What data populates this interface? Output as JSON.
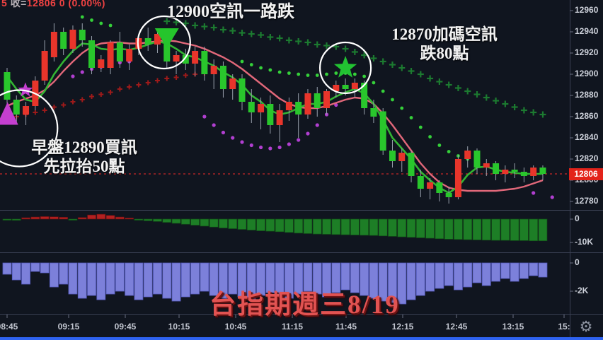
{
  "legend": {
    "p1": "5 ",
    "p2": "收=",
    "p3": "12806  0 (0.00%)"
  },
  "annotations": {
    "signal_top": "12900空訊一路跌",
    "signal_right_line1": "12870加碼空訊",
    "signal_right_line2": "跌80點",
    "signal_left_line1": "早盤12890買訊",
    "signal_left_line2": "先拉抬50點",
    "title": "台指期週三8/19"
  },
  "icons": {
    "gear": "⚙"
  },
  "price_axis": {
    "labels": [
      "12960",
      "12940",
      "12920",
      "12900",
      "12880",
      "12860",
      "12840",
      "12820",
      "12800",
      "12780"
    ],
    "last_price": "12806",
    "badge_color": "#e3231a"
  },
  "time_axis": {
    "labels": [
      "08:45",
      "09:15",
      "09:45",
      "10:15",
      "10:45",
      "11:15",
      "11:45",
      "12:15",
      "12:45",
      "13:15",
      "15:"
    ]
  },
  "colors": {
    "up_candle": "#e8352b",
    "down_candle": "#29c62c",
    "wick": "#98a0ac",
    "ma_fast": "#33b533",
    "ma_slow": "#e2687a",
    "last_price_line": "#c62828",
    "hist_pos": "#b32020",
    "hist_neg": "#1d7e26",
    "sub2_bar": "#7c80da",
    "green_plus": "#1c7a30",
    "green_dot": "#35d03a",
    "red_plus": "#9e1a1a",
    "purple_dot": "#b13fd0",
    "circle": "#ffffff"
  },
  "chart_data": {
    "type": "candlestick",
    "title": "台指期週三8/19",
    "time_start": "08:45",
    "interval_min": 5,
    "price_ticks": [
      12960,
      12940,
      12920,
      12900,
      12880,
      12860,
      12840,
      12820,
      12800,
      12780
    ],
    "last_price": 12806,
    "change": "0 (0.00%)",
    "candles": [
      [
        12902,
        12906,
        12868,
        12876
      ],
      [
        12876,
        12880,
        12854,
        12862
      ],
      [
        12862,
        12874,
        12852,
        12870
      ],
      [
        12870,
        12898,
        12866,
        12894
      ],
      [
        12894,
        12932,
        12890,
        12922
      ],
      [
        12916,
        12948,
        12912,
        12940
      ],
      [
        12940,
        12944,
        12918,
        12924
      ],
      [
        12924,
        12946,
        12920,
        12942
      ],
      [
        12942,
        12948,
        12926,
        12932
      ],
      [
        12932,
        12936,
        12900,
        12906
      ],
      [
        12906,
        12918,
        12902,
        12914
      ],
      [
        12906,
        12932,
        12900,
        12930
      ],
      [
        12930,
        12940,
        12906,
        12912
      ],
      [
        12912,
        12928,
        12904,
        12924
      ],
      [
        12924,
        12938,
        12918,
        12934
      ],
      [
        12934,
        12944,
        12922,
        12928
      ],
      [
        12928,
        12942,
        12920,
        12938
      ],
      [
        12938,
        12942,
        12906,
        12912
      ],
      [
        12912,
        12922,
        12900,
        12918
      ],
      [
        12918,
        12924,
        12904,
        12910
      ],
      [
        12910,
        12926,
        12898,
        12922
      ],
      [
        12922,
        12926,
        12894,
        12900
      ],
      [
        12900,
        12914,
        12886,
        12908
      ],
      [
        12908,
        12912,
        12878,
        12886
      ],
      [
        12886,
        12900,
        12876,
        12896
      ],
      [
        12896,
        12900,
        12866,
        12874
      ],
      [
        12874,
        12886,
        12854,
        12864
      ],
      [
        12864,
        12878,
        12848,
        12872
      ],
      [
        12872,
        12880,
        12844,
        12852
      ],
      [
        12852,
        12872,
        12836,
        12866
      ],
      [
        12866,
        12878,
        12856,
        12874
      ],
      [
        12874,
        12882,
        12840,
        12862
      ],
      [
        12862,
        12886,
        12858,
        12882
      ],
      [
        12882,
        12888,
        12860,
        12868
      ],
      [
        12868,
        12886,
        12862,
        12884
      ],
      [
        12884,
        12894,
        12878,
        12890
      ],
      [
        12890,
        12896,
        12880,
        12886
      ],
      [
        12886,
        12896,
        12878,
        12892
      ],
      [
        12892,
        12894,
        12862,
        12868
      ],
      [
        12868,
        12876,
        12854,
        12860
      ],
      [
        12865,
        12868,
        12824,
        12828
      ],
      [
        12828,
        12838,
        12812,
        12818
      ],
      [
        12818,
        12830,
        12808,
        12826
      ],
      [
        12826,
        12828,
        12798,
        12804
      ],
      [
        12804,
        12810,
        12784,
        12792
      ],
      [
        12792,
        12802,
        12782,
        12798
      ],
      [
        12798,
        12800,
        12780,
        12788
      ],
      [
        12788,
        12794,
        12778,
        12784
      ],
      [
        12784,
        12824,
        12782,
        12820
      ],
      [
        12820,
        12832,
        12812,
        12828
      ],
      [
        12828,
        12830,
        12806,
        12812
      ],
      [
        12812,
        12820,
        12804,
        12816
      ],
      [
        12816,
        12818,
        12800,
        12806
      ],
      [
        12806,
        12814,
        12798,
        12810
      ],
      [
        12810,
        12816,
        12802,
        12808
      ],
      [
        12808,
        12812,
        12798,
        12804
      ],
      [
        12804,
        12814,
        12800,
        12812
      ],
      [
        12812,
        12814,
        12800,
        12806
      ]
    ],
    "ma_fast": [
      12898,
      12886,
      12876,
      12874,
      12884,
      12900,
      12912,
      12922,
      12929,
      12928,
      12924,
      12923,
      12924,
      12923,
      12925,
      12928,
      12931,
      12929,
      12924,
      12918,
      12916,
      12912,
      12908,
      12902,
      12897,
      12890,
      12880,
      12874,
      12866,
      12862,
      12864,
      12868,
      12872,
      12872,
      12874,
      12879,
      12883,
      12886,
      12882,
      12872,
      12857,
      12840,
      12830,
      12820,
      12808,
      12800,
      12793,
      12788,
      12794,
      12805,
      12812,
      12813,
      12810,
      12808,
      12807,
      12806,
      12806,
      12806
    ],
    "ma_slow": [
      12870,
      12874,
      12877,
      12880,
      12885,
      12893,
      12903,
      12912,
      12920,
      12926,
      12929,
      12930,
      12930,
      12929,
      12929,
      12930,
      12931,
      12932,
      12931,
      12929,
      12927,
      12924,
      12920,
      12916,
      12911,
      12905,
      12898,
      12891,
      12884,
      12877,
      12872,
      12869,
      12868,
      12868,
      12870,
      12873,
      12876,
      12878,
      12877,
      12872,
      12863,
      12852,
      12840,
      12828,
      12816,
      12806,
      12798,
      12793,
      12791,
      12790,
      12790,
      12790,
      12790,
      12791,
      12792,
      12794,
      12797,
      12800
    ],
    "overlays": {
      "red_plus_trail": [
        [
          0,
          12858
        ],
        [
          1,
          12860
        ],
        [
          2,
          12862
        ],
        [
          3,
          12864
        ],
        [
          4,
          12866
        ],
        [
          5,
          12869
        ],
        [
          6,
          12871
        ],
        [
          7,
          12874
        ],
        [
          8,
          12876
        ],
        [
          9,
          12879
        ],
        [
          10,
          12881
        ],
        [
          11,
          12883
        ],
        [
          12,
          12886
        ],
        [
          13,
          12888
        ],
        [
          14,
          12890
        ],
        [
          15,
          12892
        ],
        [
          16,
          12894
        ],
        [
          17,
          12896
        ],
        [
          18,
          12897
        ],
        [
          19,
          12899
        ],
        [
          20,
          12900
        ],
        [
          21,
          12901
        ]
      ],
      "purple_dot_trail": [
        [
          7,
          12898
        ],
        [
          8,
          12902
        ],
        [
          9,
          12905
        ],
        [
          10,
          12907
        ],
        [
          11,
          12909
        ],
        [
          12,
          12911
        ],
        [
          13,
          12912
        ],
        [
          21,
          12860
        ],
        [
          22,
          12852
        ],
        [
          23,
          12845
        ],
        [
          24,
          12840
        ],
        [
          25,
          12836
        ],
        [
          26,
          12833
        ],
        [
          27,
          12831
        ],
        [
          28,
          12830
        ],
        [
          29,
          12831
        ],
        [
          30,
          12834
        ],
        [
          31,
          12838
        ],
        [
          32,
          12844
        ],
        [
          33,
          12852
        ],
        [
          34,
          12862
        ],
        [
          35,
          12871
        ],
        [
          56,
          12788
        ],
        [
          58,
          12784
        ]
      ],
      "green_plus_trail": [
        [
          17,
          12950
        ],
        [
          18,
          12949
        ],
        [
          19,
          12948
        ],
        [
          20,
          12946
        ],
        [
          21,
          12945
        ],
        [
          22,
          12944
        ],
        [
          23,
          12942
        ],
        [
          24,
          12941
        ],
        [
          25,
          12939
        ],
        [
          26,
          12938
        ],
        [
          27,
          12937
        ],
        [
          28,
          12935
        ],
        [
          29,
          12934
        ],
        [
          30,
          12932
        ],
        [
          31,
          12931
        ],
        [
          32,
          12930
        ],
        [
          33,
          12928
        ],
        [
          34,
          12927
        ],
        [
          35,
          12926
        ],
        [
          36,
          12924
        ],
        [
          37,
          12921
        ],
        [
          38,
          12918
        ],
        [
          39,
          12915
        ],
        [
          40,
          12912
        ],
        [
          41,
          12909
        ],
        [
          42,
          12906
        ],
        [
          43,
          12903
        ],
        [
          44,
          12900
        ],
        [
          45,
          12896
        ],
        [
          46,
          12893
        ],
        [
          47,
          12890
        ],
        [
          48,
          12887
        ],
        [
          49,
          12884
        ],
        [
          50,
          12881
        ],
        [
          51,
          12878
        ],
        [
          52,
          12875
        ],
        [
          53,
          12872
        ],
        [
          54,
          12869
        ],
        [
          55,
          12866
        ],
        [
          56,
          12864
        ],
        [
          57,
          12862
        ]
      ],
      "green_dot_trail": [
        [
          8,
          12954
        ],
        [
          9,
          12951
        ],
        [
          10,
          12948
        ],
        [
          11,
          12946
        ],
        [
          25,
          12912
        ],
        [
          26,
          12909
        ],
        [
          27,
          12906
        ],
        [
          28,
          12904
        ],
        [
          29,
          12902
        ],
        [
          30,
          12901
        ],
        [
          31,
          12900
        ],
        [
          32,
          12899
        ],
        [
          33,
          12899
        ],
        [
          34,
          12900
        ],
        [
          35,
          12901
        ],
        [
          36,
          12901
        ],
        [
          37,
          12900
        ],
        [
          38,
          12898
        ],
        [
          39,
          12892
        ],
        [
          40,
          12884
        ],
        [
          41,
          12876
        ],
        [
          42,
          12868
        ],
        [
          43,
          12859
        ],
        [
          44,
          12850
        ],
        [
          45,
          12841
        ],
        [
          46,
          12833
        ],
        [
          47,
          12827
        ],
        [
          48,
          12823
        ],
        [
          49,
          12820
        ]
      ]
    },
    "signals": [
      {
        "name": "short-entry-triangle",
        "shape": "triangle-down",
        "bar": 17,
        "price": 12934,
        "color": "#25c52c",
        "size": 16
      },
      {
        "name": "add-short-star",
        "shape": "star",
        "bar": 36,
        "price": 12906,
        "color": "#22c232",
        "size": 17
      },
      {
        "name": "buy-triangle",
        "shape": "triangle-up",
        "bar": 0.05,
        "price": 12863,
        "color": "#c43fd0",
        "size": 16
      },
      {
        "name": "buy-star",
        "shape": "star",
        "bar": 1.95,
        "price": 12885,
        "color": "#c43fd0",
        "size": 11
      }
    ],
    "circles": [
      {
        "bar": 16.7,
        "price": 12930,
        "r": 37
      },
      {
        "bar": 36.0,
        "price": 12906,
        "r": 36
      },
      {
        "bar": 1.3,
        "price": 12849,
        "r": 54
      }
    ],
    "sub_chart_1": {
      "axis_labels": [
        "0",
        "-10K"
      ],
      "values": [
        -300,
        -500,
        600,
        900,
        1100,
        1000,
        800,
        -300,
        700,
        1800,
        2100,
        1600,
        900,
        500,
        -400,
        -700,
        -1000,
        -1400,
        -1800,
        -2200,
        -2600,
        -3000,
        -3400,
        -3800,
        -4100,
        -4400,
        -4700,
        -5000,
        -5200,
        -5400,
        -5700,
        -6000,
        -6200,
        -6400,
        -6500,
        -6600,
        -6700,
        -6800,
        -6900,
        -7000,
        -7200,
        -7400,
        -7600,
        -7800,
        -8000,
        -8200,
        -8400,
        -8600,
        -8700,
        -8800,
        -8900,
        -9000,
        -9100,
        -9100,
        -9200,
        -9200,
        -9300,
        -9300
      ]
    },
    "sub_chart_2": {
      "axis_labels": [
        "0",
        "-2K"
      ],
      "values": [
        -800,
        -1200,
        -1500,
        -600,
        -700,
        -1700,
        -1500,
        -2200,
        -2500,
        -2300,
        -2600,
        -2200,
        -2000,
        -2300,
        -2600,
        -2400,
        -2200,
        -2500,
        -2700,
        -2400,
        -2200,
        -2000,
        -2300,
        -2500,
        -2200,
        -2400,
        -2600,
        -2300,
        -2100,
        -2300,
        -2500,
        -2200,
        -2000,
        -2200,
        -2400,
        -2100,
        -1900,
        -2100,
        -2300,
        -2500,
        -2700,
        -2800,
        -2900,
        -2600,
        -2300,
        -2000,
        -1800,
        -1600,
        -1900,
        -1700,
        -1400,
        -1600,
        -1300,
        -1100,
        -1300,
        -1100,
        -900,
        -1000
      ]
    }
  }
}
